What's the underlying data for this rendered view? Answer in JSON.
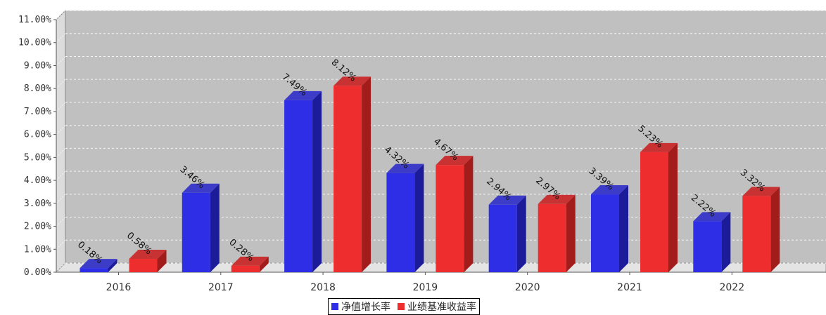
{
  "chart_data": {
    "type": "bar",
    "categories": [
      "2016",
      "2017",
      "2018",
      "2019",
      "2020",
      "2021",
      "2022"
    ],
    "series": [
      {
        "name": "净值增长率",
        "color": "#2e2ee6",
        "side_color": "#1c1c9a",
        "top_color": "#3c3cc8",
        "values": [
          0.18,
          3.46,
          7.49,
          4.32,
          2.94,
          3.39,
          2.22
        ],
        "labels": [
          "0.18%",
          "3.46%",
          "7.49%",
          "4.32%",
          "2.94%",
          "3.39%",
          "2.22%"
        ]
      },
      {
        "name": "业绩基准收益率",
        "color": "#ee2e2e",
        "side_color": "#a31c1c",
        "top_color": "#c83232",
        "values": [
          0.58,
          0.28,
          8.12,
          4.67,
          2.97,
          5.23,
          3.32
        ],
        "labels": [
          "0.58%",
          "0.28%",
          "8.12%",
          "4.67%",
          "2.97%",
          "5.23%",
          "3.32%"
        ]
      }
    ],
    "y_ticks": [
      "0.00%",
      "1.00%",
      "2.00%",
      "3.00%",
      "4.00%",
      "5.00%",
      "6.00%",
      "7.00%",
      "8.00%",
      "9.00%",
      "10.00%",
      "11.00%"
    ],
    "ylim": [
      0,
      11
    ],
    "grid": true,
    "legend_position": "bottom-center",
    "plot_background": "#c0c0c0"
  },
  "legend": {
    "items": [
      {
        "label": "净值增长率",
        "color": "#2e2ee6"
      },
      {
        "label": "业绩基准收益率",
        "color": "#ee2e2e"
      }
    ]
  }
}
